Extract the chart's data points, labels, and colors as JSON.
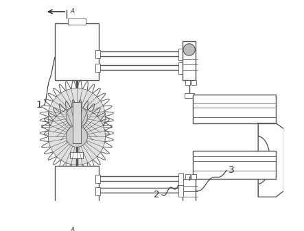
{
  "bg_color": "#ffffff",
  "lc": "#555555",
  "dc": "#333333",
  "figsize": [
    4.43,
    3.37
  ],
  "dpi": 100
}
